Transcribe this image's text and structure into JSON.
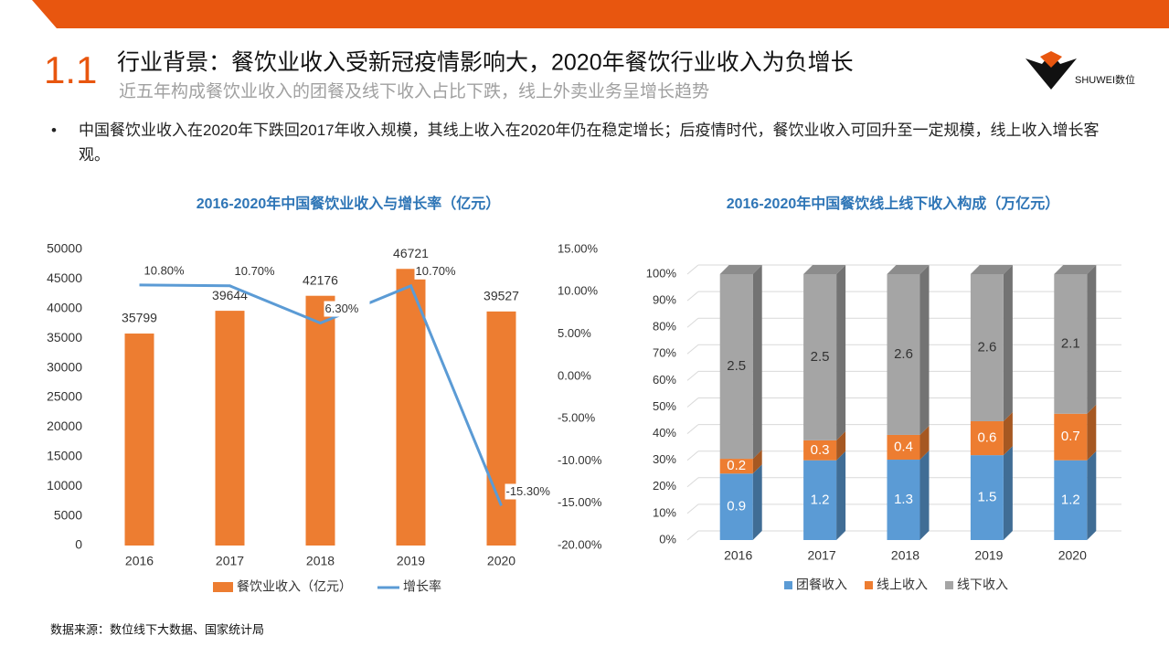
{
  "section_number": "1.1",
  "title": "行业背景：餐饮业收入受新冠疫情影响大，2020年餐饮行业收入为负增长",
  "subtitle": "近五年构成餐饮业收入的团餐及线下收入占比下跌，线上外卖业务呈增长趋势",
  "logo_text": "SHUWEI数位",
  "bullet": "中国餐饮业收入在2020年下跌回2017年收入规模，其线上收入在2020年仍在稳定增长；后疫情时代，餐饮业收入可回升至一定规模，线上收入增长客观。",
  "source": "数据来源：数位线下大数据、国家统计局",
  "chart_data": [
    {
      "type": "combo",
      "title": "2016-2020年中国餐饮业收入与增长率（亿元）",
      "categories": [
        "2016",
        "2017",
        "2018",
        "2019",
        "2020"
      ],
      "series": [
        {
          "name": "餐饮业收入（亿元）",
          "type": "bar",
          "color": "#ed7d31",
          "values": [
            35799,
            39644,
            42176,
            46721,
            39527
          ]
        },
        {
          "name": "增长率",
          "type": "line",
          "axis": "y2",
          "color": "#5b9bd5",
          "values": [
            10.8,
            10.7,
            6.3,
            10.7,
            -15.3
          ],
          "value_labels": [
            "10.80%",
            "10.70%",
            "6.30%",
            "10.70%",
            "-15.30%"
          ]
        }
      ],
      "ylim": [
        0,
        50000
      ],
      "yticks": [
        0,
        5000,
        10000,
        15000,
        20000,
        25000,
        30000,
        35000,
        40000,
        45000,
        50000
      ],
      "y2lim": [
        -20,
        15
      ],
      "y2ticks": [
        {
          "value": -20,
          "label": "-20.00%"
        },
        {
          "value": -15,
          "label": "-15.00%"
        },
        {
          "value": -10,
          "label": "-10.00%"
        },
        {
          "value": -5,
          "label": "-5.00%"
        },
        {
          "value": 0,
          "label": "0.00%"
        },
        {
          "value": 5,
          "label": "5.00%"
        },
        {
          "value": 10,
          "label": "10.00%"
        },
        {
          "value": 15,
          "label": "15.00%"
        }
      ],
      "grid": false,
      "legend": "bottom"
    },
    {
      "type": "stacked_bar",
      "title": "2016-2020年中国餐饮线上线下收入构成（万亿元）",
      "percent_stacked": true,
      "categories": [
        "2016",
        "2017",
        "2018",
        "2019",
        "2020"
      ],
      "series": [
        {
          "name": "团餐收入",
          "color": "#5b9bd5",
          "values": [
            0.9,
            1.2,
            1.3,
            1.5,
            1.2
          ]
        },
        {
          "name": "线上收入",
          "color": "#ed7d31",
          "values": [
            0.2,
            0.3,
            0.4,
            0.6,
            0.7
          ]
        },
        {
          "name": "线下收入",
          "color": "#a5a5a5",
          "values": [
            2.5,
            2.5,
            2.6,
            2.6,
            2.1
          ]
        }
      ],
      "ylim": [
        0,
        100
      ],
      "yticks": [
        {
          "value": 0,
          "label": "0%"
        },
        {
          "value": 10,
          "label": "10%"
        },
        {
          "value": 20,
          "label": "20%"
        },
        {
          "value": 30,
          "label": "30%"
        },
        {
          "value": 40,
          "label": "40%"
        },
        {
          "value": 50,
          "label": "50%"
        },
        {
          "value": 60,
          "label": "60%"
        },
        {
          "value": 70,
          "label": "70%"
        },
        {
          "value": 80,
          "label": "80%"
        },
        {
          "value": 90,
          "label": "90%"
        },
        {
          "value": 100,
          "label": "100%"
        }
      ],
      "grid": true,
      "legend": "bottom"
    }
  ]
}
